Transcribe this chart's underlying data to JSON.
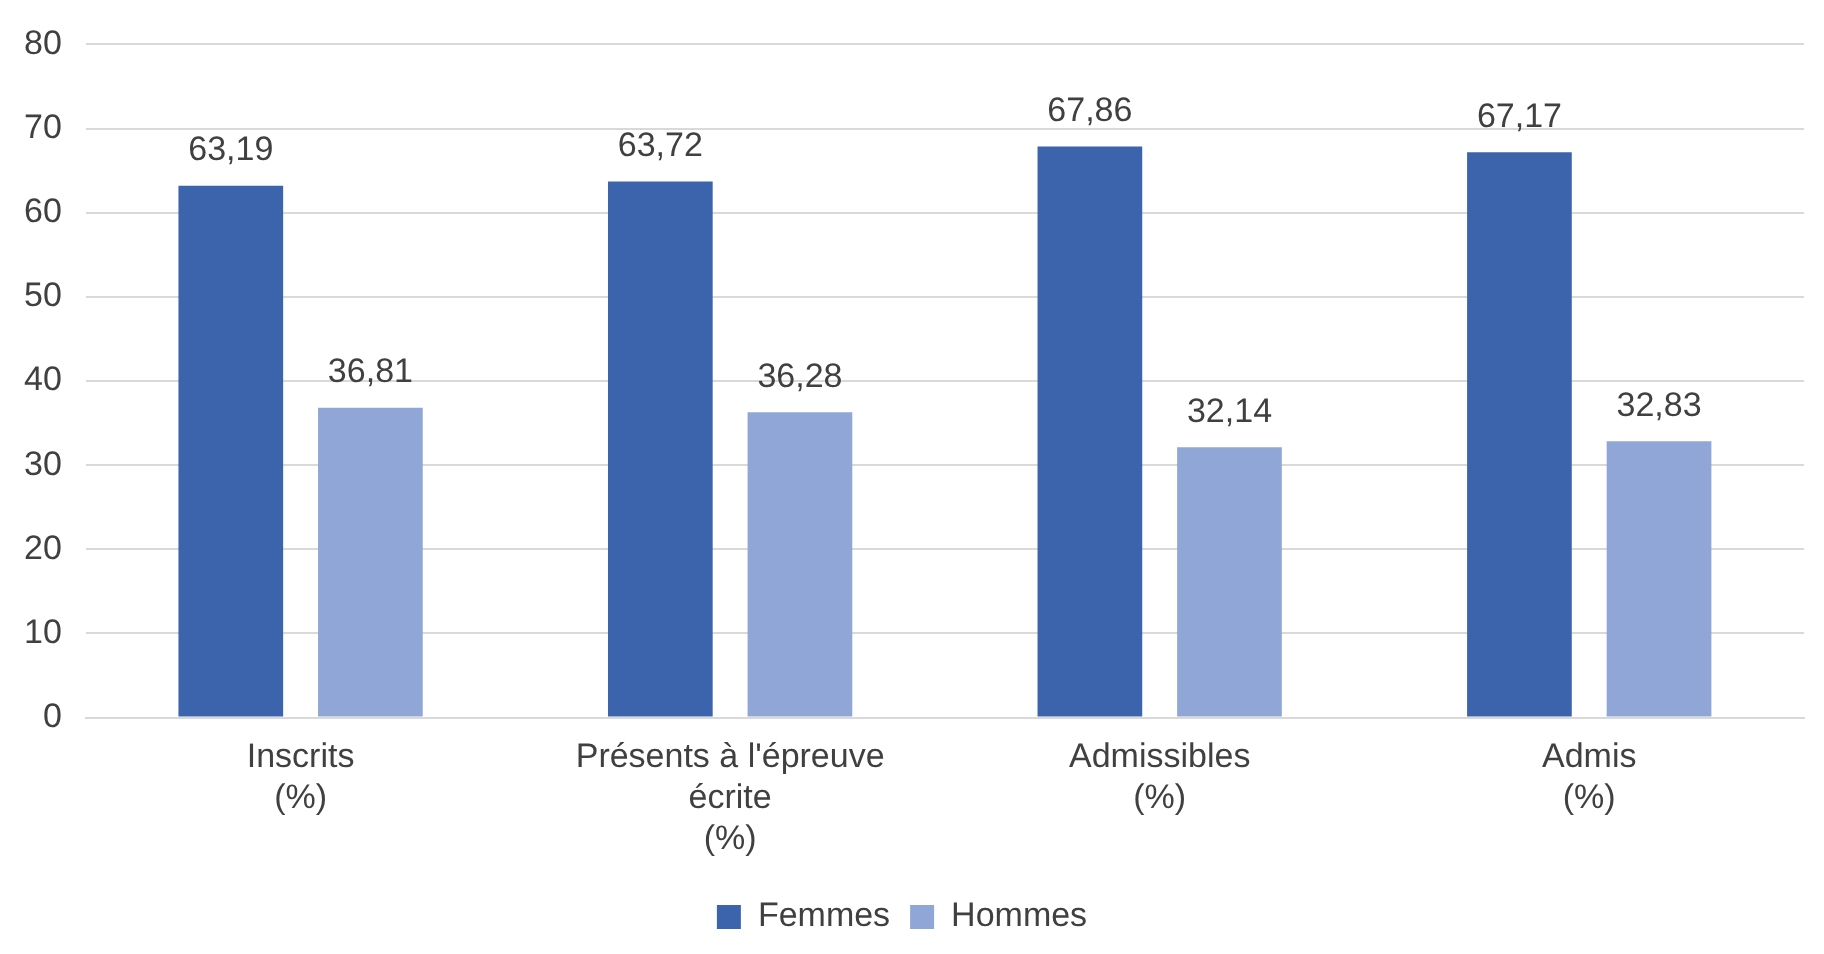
{
  "chart_data": {
    "type": "bar",
    "categories": [
      "Inscrits (%)",
      "Présents à l'épreuve écrite (%)",
      "Admissibles (%)",
      "Admis (%)"
    ],
    "series": [
      {
        "name": "Femmes",
        "color": "#3c64ad",
        "values": [
          63.19,
          63.72,
          67.86,
          67.17
        ],
        "value_labels": [
          "63,19",
          "63,72",
          "67,86",
          "67,17"
        ]
      },
      {
        "name": "Hommes",
        "color": "#8fa6d6",
        "values": [
          36.81,
          36.28,
          32.14,
          32.83
        ],
        "value_labels": [
          "36,81",
          "36,28",
          "32,14",
          "32,83"
        ]
      }
    ],
    "ylim": [
      0,
      80
    ],
    "yticks": [
      0,
      10,
      20,
      30,
      40,
      50,
      60,
      70,
      80
    ],
    "grid": "y",
    "legend": "bottom"
  }
}
